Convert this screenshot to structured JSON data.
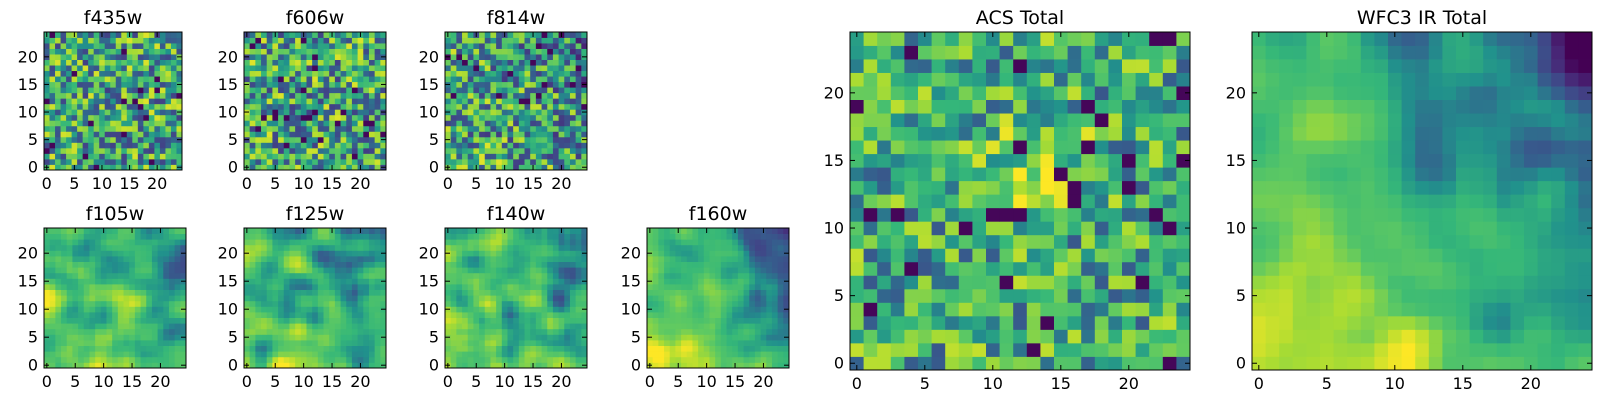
{
  "chart_data": [
    {
      "type": "heatmap",
      "title": "f435w",
      "xlabel": "",
      "ylabel": "",
      "xlim": [
        0,
        24
      ],
      "ylim": [
        0,
        24
      ],
      "xticks": [
        "0",
        "5",
        "10",
        "15",
        "20"
      ],
      "yticks": [
        "0",
        "5",
        "10",
        "15",
        "20"
      ],
      "grid": false,
      "colormap": "viridis",
      "pattern": "uniform-noise"
    },
    {
      "type": "heatmap",
      "title": "f606w",
      "xlabel": "",
      "ylabel": "",
      "xlim": [
        0,
        24
      ],
      "ylim": [
        0,
        24
      ],
      "xticks": [
        "0",
        "5",
        "10",
        "15",
        "20"
      ],
      "yticks": [
        "0",
        "5",
        "10",
        "15",
        "20"
      ],
      "grid": false,
      "colormap": "viridis",
      "pattern": "uniform-noise"
    },
    {
      "type": "heatmap",
      "title": "f814w",
      "xlabel": "",
      "ylabel": "",
      "xlim": [
        0,
        24
      ],
      "ylim": [
        0,
        24
      ],
      "xticks": [
        "0",
        "5",
        "10",
        "15",
        "20"
      ],
      "yticks": [
        "0",
        "5",
        "10",
        "15",
        "20"
      ],
      "grid": false,
      "colormap": "viridis",
      "pattern": "noise-dark-top-right"
    },
    {
      "type": "heatmap",
      "title": "f105w",
      "xlabel": "",
      "ylabel": "",
      "xlim": [
        0,
        24
      ],
      "ylim": [
        0,
        24
      ],
      "xticks": [
        "0",
        "5",
        "10",
        "15",
        "20"
      ],
      "yticks": [
        "0",
        "5",
        "10",
        "15",
        "20"
      ],
      "grid": false,
      "colormap": "viridis",
      "pattern": "smooth-dark-right"
    },
    {
      "type": "heatmap",
      "title": "f125w",
      "xlabel": "",
      "ylabel": "",
      "xlim": [
        0,
        24
      ],
      "ylim": [
        0,
        24
      ],
      "xticks": [
        "0",
        "5",
        "10",
        "15",
        "20"
      ],
      "yticks": [
        "0",
        "5",
        "10",
        "15",
        "20"
      ],
      "grid": false,
      "colormap": "viridis",
      "pattern": "smooth-dark-top-right"
    },
    {
      "type": "heatmap",
      "title": "f140w",
      "xlabel": "",
      "ylabel": "",
      "xlim": [
        0,
        24
      ],
      "ylim": [
        0,
        24
      ],
      "xticks": [
        "0",
        "5",
        "10",
        "15",
        "20"
      ],
      "yticks": [
        "0",
        "5",
        "10",
        "15",
        "20"
      ],
      "grid": false,
      "colormap": "viridis",
      "pattern": "smooth-dark-top-right"
    },
    {
      "type": "heatmap",
      "title": "f160w",
      "xlabel": "",
      "ylabel": "",
      "xlim": [
        0,
        24
      ],
      "ylim": [
        0,
        24
      ],
      "xticks": [
        "0",
        "5",
        "10",
        "15",
        "20"
      ],
      "yticks": [
        "0",
        "5",
        "10",
        "15",
        "20"
      ],
      "grid": false,
      "colormap": "viridis",
      "pattern": "bright-bottom-left-dark-top-right"
    },
    {
      "type": "heatmap",
      "title": "ACS Total",
      "xlabel": "",
      "ylabel": "",
      "xlim": [
        0,
        24
      ],
      "ylim": [
        0,
        24
      ],
      "xticks": [
        "0",
        "5",
        "10",
        "15",
        "20"
      ],
      "yticks": [
        "0",
        "5",
        "10",
        "15",
        "20"
      ],
      "grid": false,
      "colormap": "viridis",
      "pattern": "noise-bright-center"
    },
    {
      "type": "heatmap",
      "title": "WFC3 IR Total",
      "xlabel": "",
      "ylabel": "",
      "xlim": [
        0,
        24
      ],
      "ylim": [
        0,
        24
      ],
      "xticks": [
        "0",
        "5",
        "10",
        "15",
        "20"
      ],
      "yticks": [
        "0",
        "5",
        "10",
        "15",
        "20"
      ],
      "grid": false,
      "colormap": "viridis",
      "pattern": "bright-bottom-left-dark-top-right"
    }
  ]
}
